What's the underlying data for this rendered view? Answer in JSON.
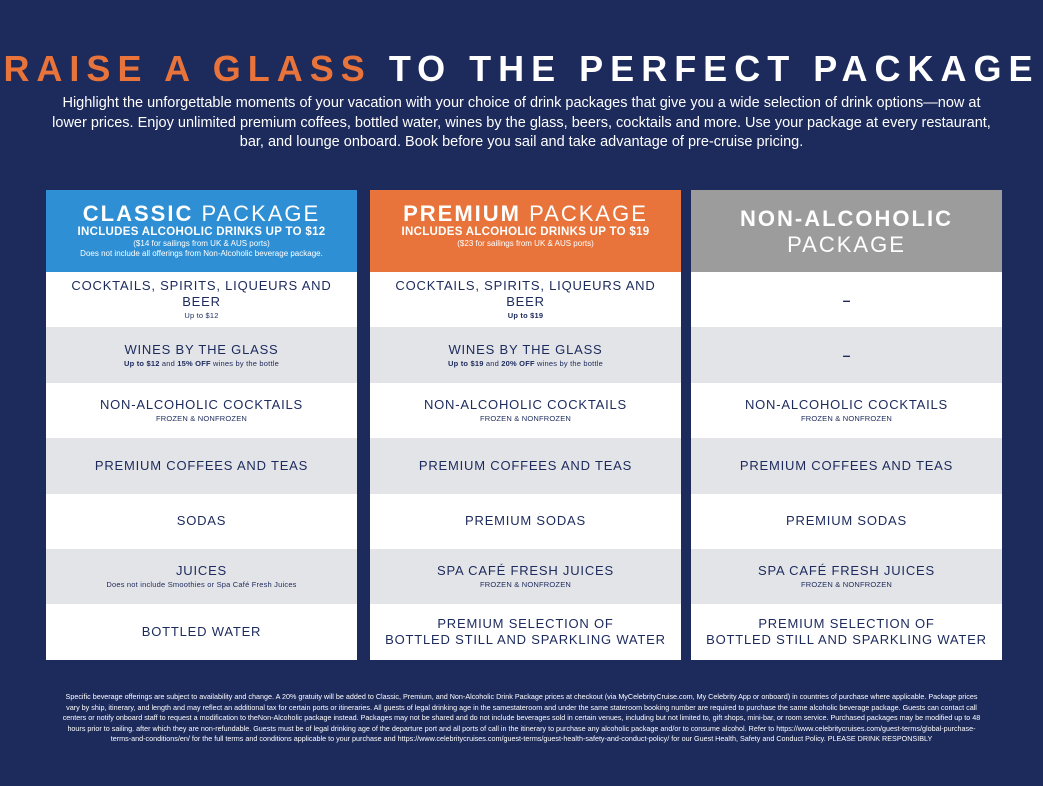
{
  "headline": {
    "part1": "RAISE A GLASS",
    "part2": "TO THE PERFECT PACKAGE"
  },
  "intro": "Highlight the unforgettable moments of your vacation with your choice of drink packages that give you a wide selection of drink options—now at lower prices. Enjoy unlimited premium coffees, bottled water, wines by the glass, beers, cocktails and more. Use your package at every restaurant, bar, and lounge onboard. Book before you sail and take advantage of pre-cruise pricing.",
  "colors": {
    "background": "#1c2a5c",
    "accent_orange": "#e8743b",
    "classic_blue": "#2e8fd4",
    "non_alcoholic_gray": "#9c9c9c"
  },
  "classic": {
    "title_bold": "CLASSIC",
    "title_light": "PACKAGE",
    "subtitle": "INCLUDES ALCOHOLIC DRINKS UP TO $12",
    "note1": "($14 for sailings from UK & AUS ports)",
    "note2": "Does not include all offerings from Non-Alcoholic beverage package.",
    "rows": [
      {
        "main": "COCKTAILS, SPIRITS, LIQUEURS AND BEER",
        "note": "Up to $12"
      },
      {
        "main": "WINES BY THE GLASS",
        "note_b1": "Up to $12",
        "note_t1": " and ",
        "note_b2": "15% OFF",
        "note_t2": " wines by the bottle"
      },
      {
        "main": "NON-ALCOHOLIC COCKTAILS",
        "note": "FROZEN & NONFROZEN"
      },
      {
        "main": "PREMIUM COFFEES AND TEAS"
      },
      {
        "main": "SODAS"
      },
      {
        "main": "JUICES",
        "note": "Does not include Smoothies or Spa Café Fresh Juices"
      },
      {
        "main": "BOTTLED WATER"
      }
    ]
  },
  "premium": {
    "title_bold": "PREMIUM",
    "title_light": "PACKAGE",
    "subtitle": "INCLUDES ALCOHOLIC DRINKS UP TO $19",
    "note1": "($23 for sailings from UK & AUS ports)",
    "rows": [
      {
        "main": "COCKTAILS, SPIRITS, LIQUEURS AND BEER",
        "note": "Up to $19"
      },
      {
        "main": "WINES BY THE GLASS",
        "note_b1": "Up to $19",
        "note_t1": " and ",
        "note_b2": "20% OFF",
        "note_t2": " wines by the bottle"
      },
      {
        "main": "NON-ALCOHOLIC COCKTAILS",
        "note": "FROZEN & NONFROZEN"
      },
      {
        "main": "PREMIUM COFFEES AND TEAS"
      },
      {
        "main": "PREMIUM SODAS"
      },
      {
        "main": "SPA CAFÉ FRESH JUICES",
        "note": "FROZEN & NONFROZEN"
      },
      {
        "main1": "PREMIUM SELECTION OF",
        "main2": "BOTTLED STILL AND SPARKLING WATER"
      }
    ]
  },
  "nonalcoholic": {
    "title_line1": "NON-ALCOHOLIC",
    "title_line2": "PACKAGE",
    "rows": [
      {
        "main": "–"
      },
      {
        "main": "–"
      },
      {
        "main": "NON-ALCOHOLIC COCKTAILS",
        "note": "FROZEN & NONFROZEN"
      },
      {
        "main": "PREMIUM COFFEES AND TEAS"
      },
      {
        "main": "PREMIUM SODAS"
      },
      {
        "main": "SPA CAFÉ FRESH JUICES",
        "note": "FROZEN & NONFROZEN"
      },
      {
        "main1": "PREMIUM SELECTION OF",
        "main2": "BOTTLED STILL AND SPARKLING WATER"
      }
    ]
  },
  "fineprint": "Specific beverage offerings are subject to availability and change. A 20% gratuity will be added to Classic, Premium, and Non-Alcoholic Drink Package prices at checkout (via MyCelebrityCruise.com, My Celebrity App or onboard) in countries of purchase where applicable. Package prices vary by ship, itinerary, and length and may reflect an additional tax for certain ports or itineraries. All guests of legal drinking age in the samestateroom and under the same stateroom booking number are required to purchase the same alcoholic beverage package. Guests can contact call centers or notify onboard staff to request a modification to theNon-Alcoholic package instead. Packages may not be shared and do not include beverages sold in certain venues, including but not limited to, gift shops, mini-bar, or room service. Purchased packages may be modified up to 48 hours prior to sailing. after which they are non-refundable. Guests must be of legal drinking age of the departure port and all ports of call in the itinerary to purchase any alcoholic package and/or to consume alcohol. Refer to https://www.celebritycruises.com/guest-terms/global-purchase-terms-and-conditions/en/ for the full terms and conditions applicable to your purchase and https://www.celebritycruises.com/guest-terms/guest-health-safety-and-conduct-policy/ for our Guest Health, Safety and Conduct Policy. PLEASE DRINK RESPONSIBLY"
}
